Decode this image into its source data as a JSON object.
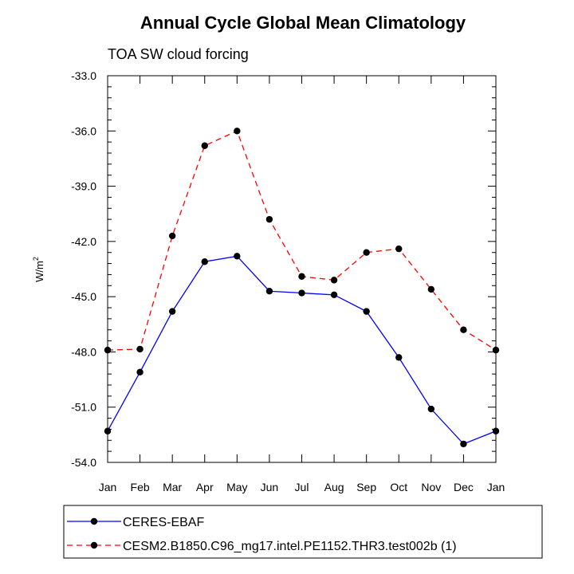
{
  "chart_data": {
    "type": "line",
    "title": "Annual Cycle Global Mean Climatology",
    "subtitle": "TOA SW cloud forcing",
    "ylabel": "W/m",
    "ylabel_sup": "2",
    "xlabel": "",
    "categories": [
      "Jan",
      "Feb",
      "Mar",
      "Apr",
      "May",
      "Jun",
      "Jul",
      "Aug",
      "Sep",
      "Oct",
      "Nov",
      "Dec",
      "Jan"
    ],
    "ylim": [
      -54.0,
      -33.0
    ],
    "yticks": [
      -33.0,
      -36.0,
      -39.0,
      -42.0,
      -45.0,
      -48.0,
      -51.0,
      -54.0
    ],
    "ytick_labels": [
      "-33.0",
      "-36.0",
      "-39.0",
      "-42.0",
      "-45.0",
      "-48.0",
      "-51.0",
      "-54.0"
    ],
    "grid": false,
    "legend_position": "bottom",
    "series": [
      {
        "name": "CERES-EBAF",
        "color": "#0000ff",
        "style": "solid",
        "marker": "circle",
        "values": [
          -52.3,
          -49.1,
          -45.8,
          -43.1,
          -42.8,
          -44.7,
          -44.8,
          -44.9,
          -45.8,
          -48.3,
          -51.1,
          -53.0,
          -52.3
        ]
      },
      {
        "name": "CESM2.B1850.C96_mg17.intel.PE1152.THR3.test002b (1)",
        "color": "#ff0000",
        "style": "dashed",
        "marker": "circle",
        "values": [
          -47.9,
          -47.85,
          -41.7,
          -36.8,
          -36.0,
          -40.8,
          -43.9,
          -44.1,
          -42.6,
          -42.4,
          -44.6,
          -46.8,
          -47.9
        ]
      }
    ]
  }
}
